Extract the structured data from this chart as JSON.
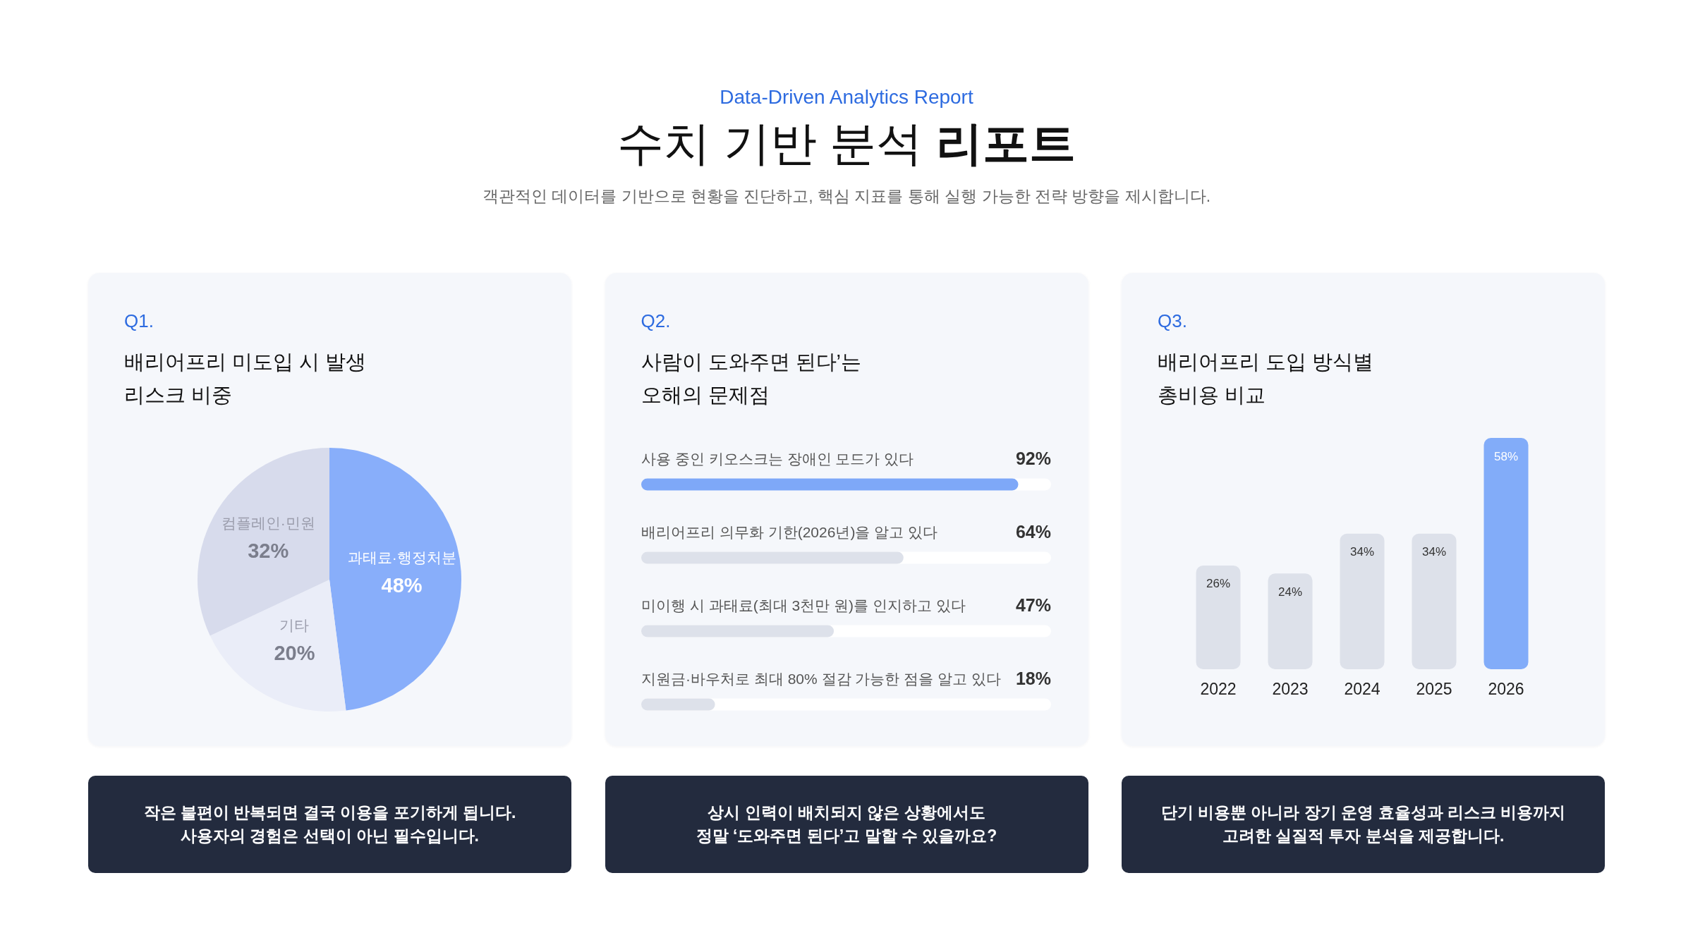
{
  "chart_data": [
    {
      "type": "other",
      "subtitle": "Data-Driven Analytics Report",
      "title": "수치 기반 분석 리포트",
      "annotations": [
        "객관적인 데이터를 기반으로 현황을 진단하고, 핵심 지표를 통해 실행 가능한 전략 방향을 제시합니다."
      ]
    },
    {
      "type": "pie",
      "subtitle": "Q1.",
      "title": "배리어프리 미도입 시 발생\n리스크 비중",
      "categories": [
        "과태료·행정처분",
        "기타",
        "컴플레인·민원"
      ],
      "values": [
        48,
        20,
        32
      ],
      "value_labels": [
        "48%",
        "20%",
        "32%"
      ],
      "colors": [
        "#88aefa",
        "#eaedf8",
        "#d7dbec"
      ],
      "annotations": [
        "작은 불편이 반복되면 결국 이용을 포기하게 됩니다.\n사용자의 경험은 선택이 아닌 필수입니다."
      ]
    },
    {
      "type": "bar",
      "orientation": "horizontal",
      "subtitle": "Q2.",
      "title": "사람이 도와주면 된다’는\n오해의 문제점",
      "categories": [
        "사용 중인 키오스크는 장애인 모드가 있다",
        "배리어프리 의무화 기한(2026년)을 알고  있다",
        "미이행 시 과태료(최대 3천만 원)를 인지하고 있다",
        "지원금·바우처로 최대 80% 절감 가능한 점을 알고 있다"
      ],
      "values": [
        92,
        64,
        47,
        18
      ],
      "value_labels": [
        "92%",
        "64%",
        "47%",
        "18%"
      ],
      "colors": [
        "#7ea8f8",
        "#dde1ea",
        "#dde1ea",
        "#dde1ea"
      ],
      "xlim": [
        0,
        100
      ],
      "tick_labels": "y",
      "annotations": [
        "상시 인력이 배치되지 않은 상황에서도\n정말 ‘도와주면 된다’고 말할 수 있을까요?"
      ]
    },
    {
      "type": "bar",
      "subtitle": "Q3.",
      "title": "배리어프리 도입 방식별\n총비용 비교",
      "categories": [
        "2022",
        "2023",
        "2024",
        "2025",
        "2026"
      ],
      "values": [
        26,
        24,
        34,
        34,
        58
      ],
      "value_labels": [
        "26%",
        "24%",
        "34%",
        "34%",
        "58%"
      ],
      "colors": [
        "#dde1ea",
        "#dde1ea",
        "#dde1ea",
        "#dde1ea",
        "#82acf9"
      ],
      "tick_labels": "x",
      "annotations": [
        "단기 비용뿐 아니라 장기 운영 효율성과 리스크 비용까지\n고려한 실질적 투자 분석을 제공합니다."
      ]
    }
  ]
}
